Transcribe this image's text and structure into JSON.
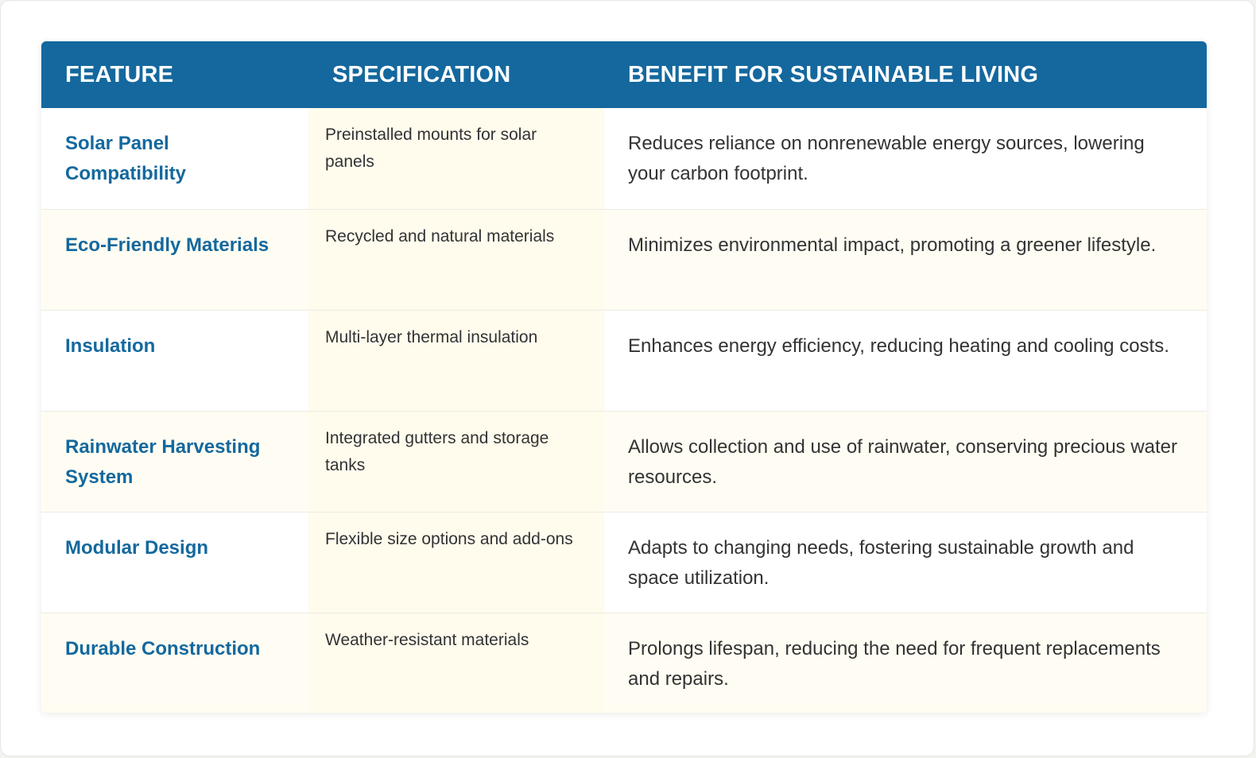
{
  "table": {
    "headers": {
      "feature": "FEATURE",
      "specification": "SPECIFICATION",
      "benefit": "BENEFIT FOR SUSTAINABLE LIVING"
    },
    "rows": [
      {
        "feature": "Solar Panel Compatibility",
        "specification": "Preinstalled mounts for solar panels",
        "benefit": "Reduces reliance on nonrenewable energy sources, lowering your carbon footprint."
      },
      {
        "feature": "Eco-Friendly Materials",
        "specification": "Recycled and natural materials",
        "benefit": "Minimizes environmental impact, promoting a greener lifestyle."
      },
      {
        "feature": "Insulation",
        "specification": "Multi-layer thermal insulation",
        "benefit": "Enhances energy efficiency, reducing heating and cooling costs."
      },
      {
        "feature": "Rainwater Harvesting System",
        "specification": "Integrated gutters and storage tanks",
        "benefit": "Allows collection and use of rainwater, conserving precious water resources."
      },
      {
        "feature": "Modular Design",
        "specification": "Flexible size options and add-ons",
        "benefit": "Adapts to changing needs, fostering sustainable growth and space utilization."
      },
      {
        "feature": "Durable Construction",
        "specification": "Weather-resistant materials",
        "benefit": "Prolongs lifespan, reducing the need for frequent replacements and repairs."
      }
    ]
  },
  "colors": {
    "header_bg": "#14689e",
    "feature_text": "#14689e",
    "spec_bg": "#fffbed",
    "alt_row_bg": "#fffdf3"
  }
}
